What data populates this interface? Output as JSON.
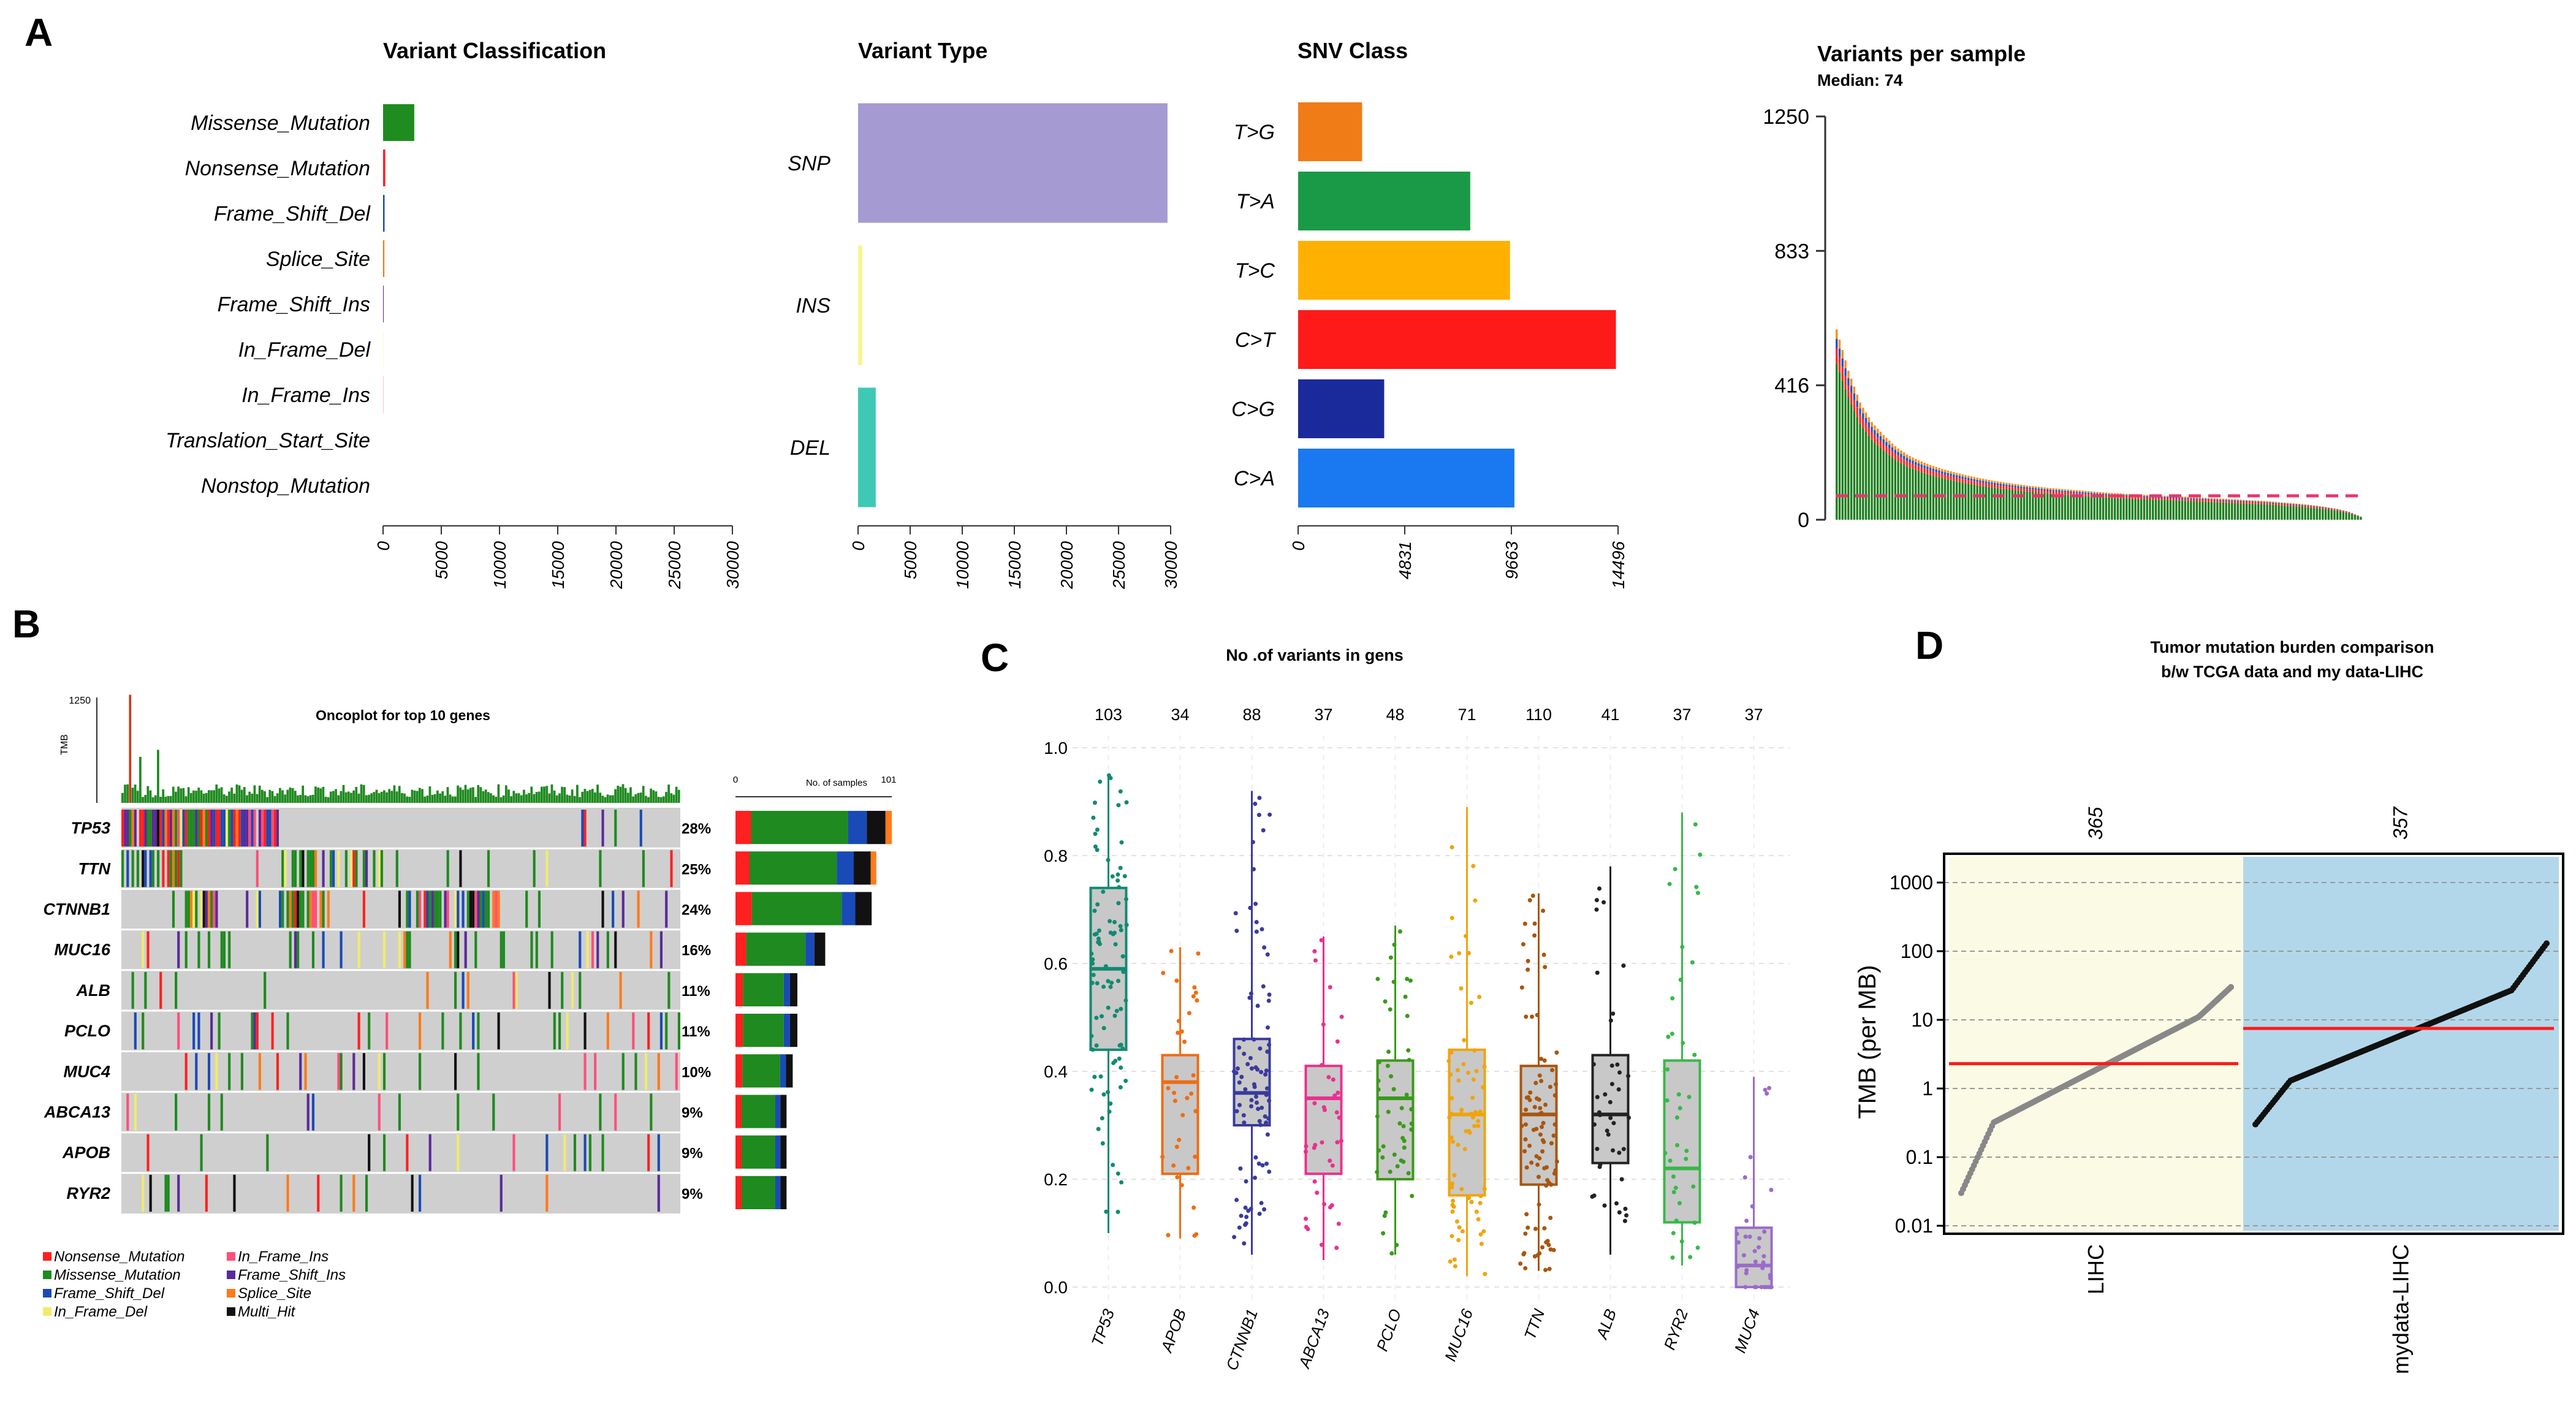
{
  "panels": {
    "A": {
      "letter": "A",
      "variant_classification": {
        "title": "Variant Classification",
        "colors": [
          "#1e8c1e",
          "#ff1f1f",
          "#1746b8",
          "#ff6f0f",
          "#4a1f8a",
          "#f5f277",
          "#ff5a86",
          "#999999",
          "#999999"
        ],
        "chart_data": {
          "type": "bar",
          "orientation": "horizontal",
          "categories": [
            "Missense_Mutation",
            "Nonsense_Mutation",
            "Frame_Shift_Del",
            "Splice_Site",
            "Frame_Shift_Ins",
            "In_Frame_Del",
            "In_Frame_Ins",
            "Translation_Start_Site",
            "Nonstop_Mutation"
          ],
          "values": [
            2680,
            190,
            130,
            110,
            50,
            20,
            20,
            0,
            0
          ],
          "xlim": [
            0,
            30000
          ],
          "xticks": [
            "0",
            "5000",
            "10000",
            "15000",
            "20000",
            "25000",
            "30000"
          ]
        }
      },
      "variant_type": {
        "title": "Variant Type",
        "colors": [
          "#a59bd2",
          "#f8f58b",
          "#3ec9b5"
        ],
        "chart_data": {
          "type": "bar",
          "orientation": "horizontal",
          "categories": [
            "SNP",
            "INS",
            "DEL"
          ],
          "values": [
            29700,
            400,
            1700
          ],
          "xlim": [
            0,
            30000
          ],
          "xticks": [
            "0",
            "5000",
            "10000",
            "15000",
            "20000",
            "25000",
            "30000"
          ]
        }
      },
      "snv_class": {
        "title": "SNV Class",
        "colors": [
          "#f07c18",
          "#1a9a46",
          "#ffb000",
          "#ff1a1a",
          "#1a2a9a",
          "#1a78f0"
        ],
        "chart_data": {
          "type": "bar",
          "orientation": "horizontal",
          "categories": [
            "T>G",
            "T>A",
            "T>C",
            "C>T",
            "C>G",
            "C>A"
          ],
          "values": [
            2900,
            7800,
            9600,
            14400,
            3900,
            9800
          ],
          "xlim": [
            0,
            14496
          ],
          "xticks": [
            "0",
            "4831",
            "9663",
            "14496"
          ]
        }
      },
      "variants_per_sample": {
        "title": "Variants per sample",
        "subtitle": "Median: 74",
        "median": 74,
        "median_line_color": "#e8356e",
        "stack_colors": [
          "#1f7f1f",
          "#ff2a2a",
          "#1a5ac8",
          "#ff8c1a"
        ],
        "chart_data": {
          "type": "bar",
          "ylim": [
            0,
            1250
          ],
          "yticks": [
            "0",
            "416",
            "833",
            "1250"
          ],
          "n_samples": 365,
          "profile": [
            590,
            460,
            360,
            300,
            260,
            225,
            200,
            182,
            168,
            156,
            146,
            137,
            129,
            122,
            116,
            111,
            106,
            102,
            98,
            95,
            92,
            89,
            86,
            83,
            81,
            79,
            77,
            75,
            74,
            72,
            70,
            68,
            66,
            64,
            62,
            60,
            58,
            55,
            52,
            49,
            45,
            40,
            34,
            25,
            10
          ]
        }
      }
    },
    "B": {
      "letter": "B",
      "title": "Oncoplot for top 10 genes",
      "tmb_label": "TMB",
      "tmb_max": "1250",
      "samples_axis_label": "No. of samples",
      "samples_axis_ticks": [
        "0",
        "101"
      ],
      "genes": [
        "TP53",
        "TTN",
        "CTNNB1",
        "MUC16",
        "ALB",
        "PCLO",
        "MUC4",
        "ABCA13",
        "APOB",
        "RYR2"
      ],
      "percent_labels": [
        "28%",
        "25%",
        "24%",
        "16%",
        "11%",
        "11%",
        "10%",
        "9%",
        "9%",
        "9%"
      ],
      "chart_data": {
        "type": "bar",
        "categories": [
          "TP53",
          "TTN",
          "CTNNB1",
          "MUC16",
          "ALB",
          "PCLO",
          "MUC4",
          "ABCA13",
          "APOB",
          "RYR2"
        ],
        "series": [
          {
            "name": "No. of samples",
            "values": [
              101,
              91,
              88,
              58,
              40,
              40,
              37,
              33,
              33,
              33
            ]
          }
        ]
      },
      "legend": [
        {
          "label": "Nonsense_Mutation",
          "color": "#ff2020"
        },
        {
          "label": "In_Frame_Ins",
          "color": "#ff4f7b"
        },
        {
          "label": "Missense_Mutation",
          "color": "#1f8a1f"
        },
        {
          "label": "Frame_Shift_Ins",
          "color": "#5a2a9a"
        },
        {
          "label": "Frame_Shift_Del",
          "color": "#1a4ab8"
        },
        {
          "label": "Splice_Site",
          "color": "#ff7a1a"
        },
        {
          "label": "In_Frame_Del",
          "color": "#f0ec6a"
        },
        {
          "label": "Multi_Hit",
          "color": "#111111"
        }
      ]
    },
    "C": {
      "letter": "C",
      "title": "No .of variants in gens",
      "chart_data": {
        "type": "box",
        "categories": [
          "TP53",
          "APOB",
          "CTNNB1",
          "ABCA13",
          "PCLO",
          "MUC16",
          "TTN",
          "ALB",
          "RYR2",
          "MUC4"
        ],
        "counts": [
          "103",
          "34",
          "88",
          "37",
          "48",
          "71",
          "110",
          "41",
          "37",
          "37"
        ],
        "colors": [
          "#128a72",
          "#ef6c12",
          "#3a3a9e",
          "#e8318e",
          "#3a9a1a",
          "#f0a40a",
          "#a8560e",
          "#222222",
          "#38b848",
          "#9a6cc8"
        ],
        "median": [
          0.59,
          0.38,
          0.36,
          0.35,
          0.35,
          0.32,
          0.32,
          0.32,
          0.22,
          0.04
        ],
        "q1": [
          0.44,
          0.21,
          0.3,
          0.21,
          0.2,
          0.17,
          0.19,
          0.23,
          0.12,
          0.0
        ],
        "q3": [
          0.74,
          0.43,
          0.46,
          0.41,
          0.42,
          0.44,
          0.41,
          0.43,
          0.42,
          0.11
        ],
        "min": [
          0.1,
          0.09,
          0.06,
          0.05,
          0.06,
          0.02,
          0.03,
          0.06,
          0.04,
          0.0
        ],
        "max": [
          0.95,
          0.63,
          0.92,
          0.65,
          0.67,
          0.89,
          0.73,
          0.78,
          0.88,
          0.39
        ],
        "ylim": [
          0,
          1.0
        ],
        "yticks": [
          "0.0",
          "0.2",
          "0.4",
          "0.6",
          "0.8",
          "1.0"
        ]
      }
    },
    "D": {
      "letter": "D",
      "title_line1": "Tumor mutation burden comparison",
      "title_line2": "b/w TCGA data and my data-LIHC",
      "ylabel": "TMB (per MB)",
      "yticks": [
        "1000",
        "100",
        "10",
        "1",
        "0.1",
        "0.01"
      ],
      "median_line_color": "#ff1a1a",
      "chart_data": {
        "type": "scatter",
        "scale": "log",
        "groups": [
          {
            "name": "LIHC",
            "n": "365",
            "median": 2.3,
            "color": "#888888",
            "bg": "#fbfae4",
            "min": 0.03,
            "max": 30,
            "lo_shape": 0.32,
            "hi_shape": 11
          },
          {
            "name": "mydata-LIHC",
            "n": "357",
            "median": 7.5,
            "color": "#111111",
            "bg": "#b3d7ea",
            "min": 0.3,
            "max": 130,
            "lo_shape": 1.3,
            "hi_shape": 27
          }
        ],
        "ylim": [
          0.01,
          1000
        ]
      }
    }
  }
}
